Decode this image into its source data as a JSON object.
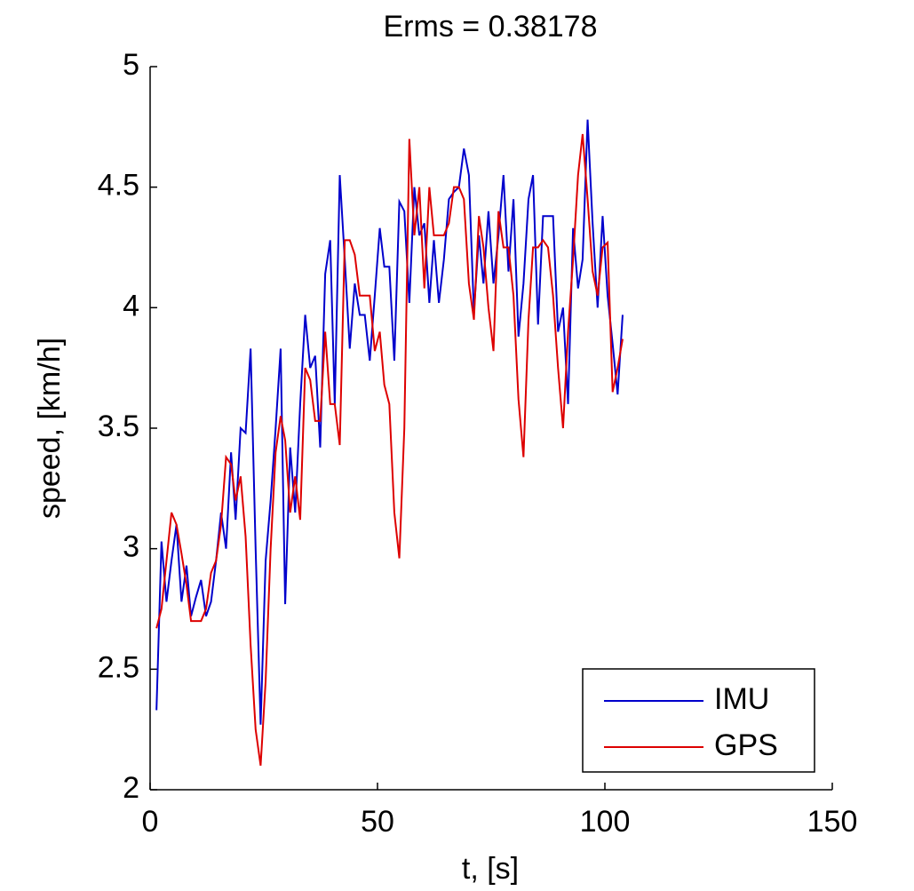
{
  "chart_data": {
    "type": "line",
    "title": "Erms = 0.38178",
    "x_label": "t, [s]",
    "y_label": "speed, [km/h]",
    "xlim": [
      0,
      150
    ],
    "xticks": [
      0,
      50,
      100,
      150
    ],
    "ylim": [
      2,
      5
    ],
    "yticks": [
      2,
      2.5,
      3,
      3.5,
      4,
      4.5,
      5
    ],
    "grid": false,
    "legend": "lower right",
    "x": [
      1.4,
      2.5,
      3.6,
      4.7,
      5.8,
      6.9,
      8.0,
      9.0,
      10.1,
      11.2,
      12.3,
      13.4,
      14.5,
      15.6,
      16.7,
      17.8,
      18.8,
      19.9,
      21.0,
      22.1,
      23.2,
      24.3,
      25.4,
      26.5,
      27.6,
      28.7,
      29.7,
      30.8,
      31.9,
      33.0,
      34.1,
      35.2,
      36.3,
      37.4,
      38.5,
      39.6,
      40.6,
      41.7,
      42.8,
      43.9,
      45.0,
      46.1,
      47.2,
      48.3,
      49.4,
      50.5,
      51.5,
      52.6,
      53.7,
      54.8,
      55.9,
      57.0,
      58.1,
      59.2,
      60.3,
      61.4,
      62.4,
      63.5,
      64.6,
      65.7,
      66.8,
      67.9,
      69.0,
      70.1,
      71.2,
      72.3,
      73.3,
      74.4,
      75.5,
      76.6,
      77.7,
      78.8,
      79.9,
      81.0,
      82.1,
      83.2,
      84.2,
      85.3,
      86.4,
      87.5,
      88.6,
      89.7,
      90.8,
      91.9,
      93.0,
      94.1,
      95.1,
      96.2,
      97.3,
      98.4,
      99.5,
      100.6,
      101.7,
      102.8,
      103.9
    ],
    "series": [
      {
        "name": "IMU",
        "color": "#0000cc",
        "values": [
          2.33,
          3.03,
          2.78,
          2.95,
          3.1,
          2.78,
          2.93,
          2.72,
          2.8,
          2.87,
          2.72,
          2.78,
          2.95,
          3.15,
          3.0,
          3.4,
          3.12,
          3.5,
          3.48,
          3.83,
          3.0,
          2.27,
          2.95,
          3.2,
          3.5,
          3.83,
          2.77,
          3.42,
          3.15,
          3.6,
          3.97,
          3.75,
          3.8,
          3.42,
          4.14,
          4.28,
          3.6,
          4.55,
          4.2,
          3.83,
          4.1,
          3.97,
          3.97,
          3.78,
          4.05,
          4.33,
          4.17,
          4.17,
          3.78,
          4.44,
          4.4,
          4.02,
          4.5,
          4.3,
          4.35,
          4.02,
          4.28,
          4.02,
          4.2,
          4.45,
          4.48,
          4.5,
          4.66,
          4.55,
          3.98,
          4.3,
          4.1,
          4.4,
          4.1,
          4.3,
          4.55,
          4.15,
          4.45,
          3.88,
          4.1,
          4.45,
          4.55,
          3.93,
          4.38,
          4.38,
          4.38,
          3.9,
          4.0,
          3.6,
          4.33,
          4.08,
          4.2,
          4.78,
          4.35,
          4.0,
          4.38,
          4.05,
          3.85,
          3.64,
          3.97
        ]
      },
      {
        "name": "GPS",
        "color": "#dd0000",
        "values": [
          2.67,
          2.75,
          2.95,
          3.15,
          3.1,
          2.98,
          2.85,
          2.7,
          2.7,
          2.7,
          2.75,
          2.9,
          2.95,
          3.1,
          3.38,
          3.35,
          3.2,
          3.3,
          3.05,
          2.6,
          2.25,
          2.1,
          2.45,
          3.0,
          3.4,
          3.55,
          3.45,
          3.15,
          3.3,
          3.12,
          3.75,
          3.7,
          3.53,
          3.53,
          3.9,
          3.6,
          3.6,
          3.43,
          4.28,
          4.28,
          4.22,
          4.05,
          4.05,
          4.05,
          3.82,
          3.9,
          3.68,
          3.6,
          3.15,
          2.96,
          3.5,
          4.7,
          4.3,
          4.5,
          4.08,
          4.5,
          4.3,
          4.3,
          4.3,
          4.35,
          4.5,
          4.5,
          4.45,
          4.1,
          3.95,
          4.38,
          4.25,
          4.0,
          3.82,
          4.4,
          4.25,
          4.25,
          4.05,
          3.62,
          3.38,
          3.95,
          4.25,
          4.25,
          4.28,
          4.25,
          4.05,
          3.75,
          3.5,
          3.9,
          4.2,
          4.55,
          4.72,
          4.45,
          4.15,
          4.05,
          4.25,
          4.27,
          3.65,
          3.75,
          3.87
        ]
      }
    ]
  }
}
